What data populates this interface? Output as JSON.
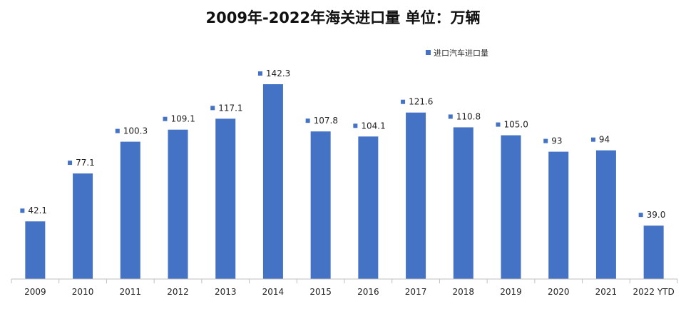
{
  "chart_data": {
    "type": "bar",
    "title": "2009年-2022年海关进口量  单位：万辆",
    "xlabel": "",
    "ylabel": "",
    "categories": [
      "2009",
      "2010",
      "2011",
      "2012",
      "2013",
      "2014",
      "2015",
      "2016",
      "2017",
      "2018",
      "2019",
      "2020",
      "2021",
      "2022 YTD"
    ],
    "series": [
      {
        "name": "进口汽车进口量",
        "values": [
          42.1,
          77.1,
          100.3,
          109.1,
          117.1,
          142.3,
          107.8,
          104.1,
          121.6,
          110.8,
          105.0,
          93,
          94,
          39.0
        ],
        "labels": [
          "42.1",
          "77.1",
          "100.3",
          "109.1",
          "117.1",
          "142.3",
          "107.8",
          "104.1",
          "121.6",
          "110.8",
          "105.0",
          "93",
          "94",
          "39.0"
        ]
      }
    ],
    "ylim": [
      0,
      150
    ],
    "grid": false,
    "legend_position": "top-right",
    "colors": {
      "bar": "#4472C4",
      "axis": "#bfbfbf"
    }
  }
}
